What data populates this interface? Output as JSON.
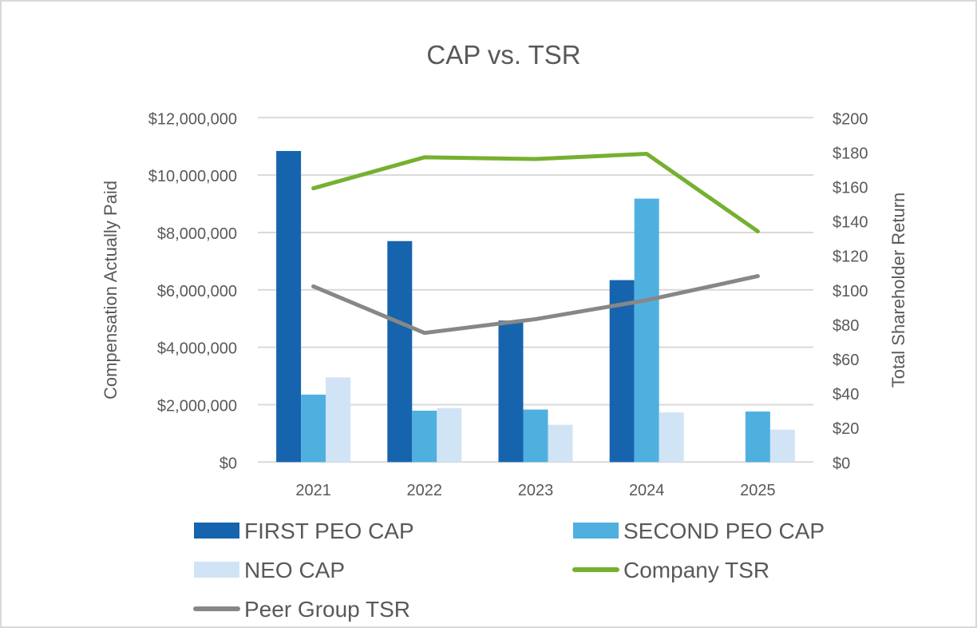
{
  "chart_data": {
    "type": "bar",
    "title": "CAP vs. TSR",
    "categories": [
      "2021",
      "2022",
      "2023",
      "2024",
      "2025"
    ],
    "xlabel": "",
    "ylabel": "Compensation Actually Paid",
    "ylabel_right": "Total Shareholder Return",
    "ylim": [
      0,
      12000000
    ],
    "ylim_right": [
      0,
      200
    ],
    "yticks": [
      "$0",
      "$2,000,000",
      "$4,000,000",
      "$6,000,000",
      "$8,000,000",
      "$10,000,000",
      "$12,000,000"
    ],
    "yticks_right": [
      "$0",
      "$20",
      "$40",
      "$60",
      "$80",
      "$100",
      "$120",
      "$140",
      "$160",
      "$180",
      "$200"
    ],
    "grid": true,
    "legend_position": "bottom",
    "series": [
      {
        "name": "FIRST PEO CAP",
        "type": "bar",
        "axis": "left",
        "color": "#1764ae",
        "values": [
          10840000,
          7700000,
          4930000,
          6340000,
          null
        ]
      },
      {
        "name": "SECOND PEO CAP",
        "type": "bar",
        "axis": "left",
        "color": "#4fb0e0",
        "values": [
          2350000,
          1790000,
          1830000,
          9180000,
          1760000
        ]
      },
      {
        "name": "NEO CAP",
        "type": "bar",
        "axis": "left",
        "color": "#d0e4f5",
        "values": [
          2950000,
          1880000,
          1300000,
          1730000,
          1130000
        ]
      },
      {
        "name": "Company TSR",
        "type": "line",
        "axis": "right",
        "color": "#76b030",
        "values": [
          159,
          177,
          176,
          179,
          134
        ]
      },
      {
        "name": "Peer Group TSR",
        "type": "line",
        "axis": "right",
        "color": "#878787",
        "values": [
          102,
          75,
          83,
          94,
          108
        ]
      }
    ]
  }
}
